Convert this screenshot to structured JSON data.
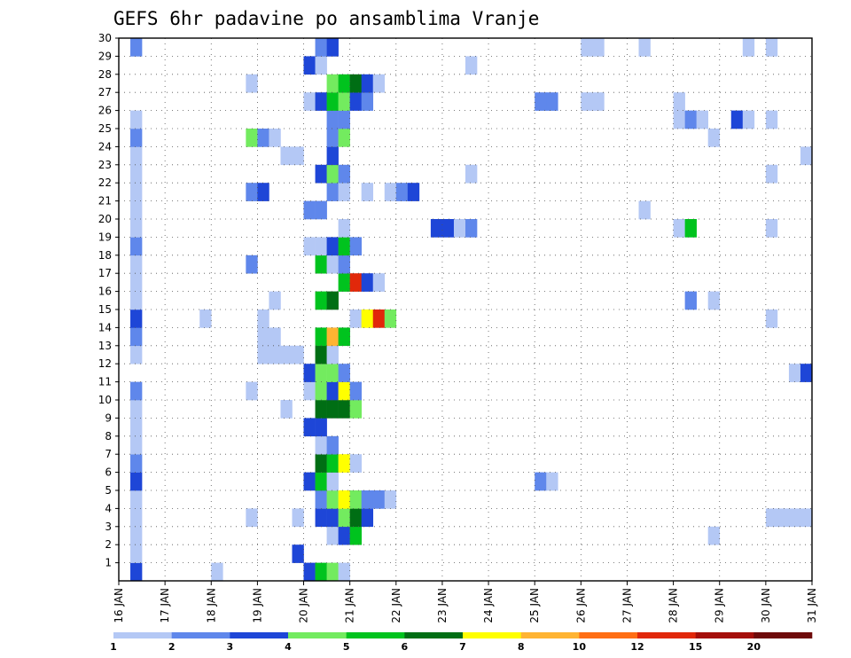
{
  "chart_data": {
    "type": "heatmap",
    "title": "GEFS 6hr padavine po ansamblima Vranje",
    "xlabel": "",
    "ylabel": "",
    "x_ticks": [
      "16 JAN",
      "17 JAN",
      "18 JAN",
      "19 JAN",
      "20 JAN",
      "21 JAN",
      "22 JAN",
      "23 JAN",
      "24 JAN",
      "25 JAN",
      "26 JAN",
      "27 JAN",
      "28 JAN",
      "29 JAN",
      "30 JAN",
      "31 JAN"
    ],
    "y_ticks": [
      "1",
      "2",
      "3",
      "4",
      "5",
      "6",
      "7",
      "8",
      "9",
      "10",
      "11",
      "12",
      "13",
      "14",
      "15",
      "16",
      "17",
      "18",
      "19",
      "20",
      "21",
      "22",
      "23",
      "24",
      "25",
      "26",
      "27",
      "28",
      "29",
      "30"
    ],
    "xlim": [
      "16 JAN",
      "31 JAN"
    ],
    "ylim": [
      0,
      30
    ],
    "grid": true,
    "legend": {
      "position": "bottom",
      "breaks": [
        "1",
        "2",
        "3",
        "4",
        "5",
        "6",
        "7",
        "8",
        "10",
        "12",
        "15",
        "20"
      ],
      "colors": [
        "#b4c8f5",
        "#5f87eb",
        "#1e46d7",
        "#73eb5f",
        "#00c31e",
        "#006e14",
        "#ffff00",
        "#ffb432",
        "#ff6e14",
        "#e1280a",
        "#a50f0a",
        "#6e0a0a"
      ]
    },
    "x_step": "6h",
    "cells": [
      [
        "16 JAN 06",
        0,
        3
      ],
      [
        "20 JAN 00",
        0,
        3
      ],
      [
        "20 JAN 06",
        0,
        5
      ],
      [
        "20 JAN 12",
        0,
        4
      ],
      [
        "20 JAN 18",
        0,
        1
      ],
      [
        "18 JAN 00",
        0,
        1
      ],
      [
        "16 JAN 06",
        1,
        1
      ],
      [
        "19 JAN 18",
        1,
        3
      ],
      [
        "16 JAN 06",
        2,
        1
      ],
      [
        "20 JAN 12",
        2,
        1
      ],
      [
        "20 JAN 18",
        2,
        3
      ],
      [
        "21 JAN 00",
        2,
        5
      ],
      [
        "28 JAN 18",
        2,
        1
      ],
      [
        "16 JAN 06",
        3,
        1
      ],
      [
        "18 JAN 18",
        3,
        1
      ],
      [
        "19 JAN 18",
        3,
        1
      ],
      [
        "20 JAN 06",
        3,
        3
      ],
      [
        "20 JAN 12",
        3,
        3
      ],
      [
        "20 JAN 18",
        3,
        4
      ],
      [
        "21 JAN 00",
        3,
        6
      ],
      [
        "21 JAN 06",
        3,
        3
      ],
      [
        "30 JAN 00",
        3,
        1
      ],
      [
        "30 JAN 06",
        3,
        1
      ],
      [
        "30 JAN 12",
        3,
        1
      ],
      [
        "30 JAN 18",
        3,
        1
      ],
      [
        "16 JAN 06",
        4,
        1
      ],
      [
        "20 JAN 06",
        4,
        2
      ],
      [
        "20 JAN 12",
        4,
        4
      ],
      [
        "20 JAN 18",
        4,
        7
      ],
      [
        "21 JAN 00",
        4,
        4
      ],
      [
        "21 JAN 06",
        4,
        2
      ],
      [
        "21 JAN 12",
        4,
        2
      ],
      [
        "21 JAN 18",
        4,
        1
      ],
      [
        "16 JAN 06",
        5,
        3
      ],
      [
        "20 JAN 00",
        5,
        3
      ],
      [
        "20 JAN 06",
        5,
        5
      ],
      [
        "20 JAN 12",
        5,
        1
      ],
      [
        "25 JAN 00",
        5,
        2
      ],
      [
        "25 JAN 06",
        5,
        1
      ],
      [
        "16 JAN 06",
        6,
        2
      ],
      [
        "20 JAN 06",
        6,
        6
      ],
      [
        "20 JAN 12",
        6,
        5
      ],
      [
        "20 JAN 18",
        6,
        7
      ],
      [
        "21 JAN 00",
        6,
        1
      ],
      [
        "16 JAN 06",
        7,
        1
      ],
      [
        "20 JAN 06",
        7,
        1
      ],
      [
        "20 JAN 12",
        7,
        2
      ],
      [
        "16 JAN 06",
        8,
        1
      ],
      [
        "20 JAN 00",
        8,
        3
      ],
      [
        "20 JAN 06",
        8,
        3
      ],
      [
        "16 JAN 06",
        9,
        1
      ],
      [
        "19 JAN 12",
        9,
        1
      ],
      [
        "20 JAN 06",
        9,
        6
      ],
      [
        "20 JAN 12",
        9,
        6
      ],
      [
        "20 JAN 18",
        9,
        6
      ],
      [
        "21 JAN 00",
        9,
        4
      ],
      [
        "16 JAN 06",
        10,
        2
      ],
      [
        "18 JAN 18",
        10,
        1
      ],
      [
        "20 JAN 00",
        10,
        1
      ],
      [
        "20 JAN 06",
        10,
        4
      ],
      [
        "20 JAN 12",
        10,
        3
      ],
      [
        "20 JAN 18",
        10,
        7
      ],
      [
        "21 JAN 00",
        10,
        2
      ],
      [
        "20 JAN 00",
        11,
        3
      ],
      [
        "20 JAN 06",
        11,
        4
      ],
      [
        "20 JAN 12",
        11,
        4
      ],
      [
        "20 JAN 18",
        11,
        2
      ],
      [
        "30 JAN 12",
        11,
        1
      ],
      [
        "30 JAN 18",
        11,
        3
      ],
      [
        "16 JAN 06",
        12,
        1
      ],
      [
        "19 JAN 00",
        12,
        1
      ],
      [
        "19 JAN 06",
        12,
        1
      ],
      [
        "19 JAN 12",
        12,
        1
      ],
      [
        "19 JAN 18",
        12,
        1
      ],
      [
        "20 JAN 06",
        12,
        6
      ],
      [
        "20 JAN 12",
        12,
        1
      ],
      [
        "16 JAN 06",
        13,
        2
      ],
      [
        "19 JAN 00",
        13,
        1
      ],
      [
        "19 JAN 06",
        13,
        1
      ],
      [
        "20 JAN 06",
        13,
        5
      ],
      [
        "20 JAN 12",
        13,
        8
      ],
      [
        "20 JAN 18",
        13,
        5
      ],
      [
        "16 JAN 06",
        14,
        3
      ],
      [
        "17 JAN 18",
        14,
        1
      ],
      [
        "19 JAN 00",
        14,
        1
      ],
      [
        "21 JAN 00",
        14,
        1
      ],
      [
        "21 JAN 06",
        14,
        7
      ],
      [
        "21 JAN 12",
        14,
        12
      ],
      [
        "21 JAN 18",
        14,
        4
      ],
      [
        "30 JAN 00",
        14,
        1
      ],
      [
        "16 JAN 06",
        15,
        1
      ],
      [
        "19 JAN 06",
        15,
        1
      ],
      [
        "20 JAN 06",
        15,
        5
      ],
      [
        "20 JAN 12",
        15,
        6
      ],
      [
        "28 JAN 06",
        15,
        2
      ],
      [
        "28 JAN 18",
        15,
        1
      ],
      [
        "16 JAN 06",
        16,
        1
      ],
      [
        "20 JAN 18",
        16,
        5
      ],
      [
        "21 JAN 00",
        16,
        12
      ],
      [
        "21 JAN 06",
        16,
        3
      ],
      [
        "21 JAN 12",
        16,
        1
      ],
      [
        "16 JAN 06",
        17,
        1
      ],
      [
        "18 JAN 18",
        17,
        2
      ],
      [
        "20 JAN 06",
        17,
        5
      ],
      [
        "20 JAN 12",
        17,
        1
      ],
      [
        "20 JAN 18",
        17,
        2
      ],
      [
        "16 JAN 06",
        18,
        2
      ],
      [
        "20 JAN 00",
        18,
        1
      ],
      [
        "20 JAN 06",
        18,
        1
      ],
      [
        "20 JAN 12",
        18,
        3
      ],
      [
        "20 JAN 18",
        18,
        5
      ],
      [
        "21 JAN 00",
        18,
        2
      ],
      [
        "16 JAN 06",
        19,
        1
      ],
      [
        "20 JAN 18",
        19,
        1
      ],
      [
        "22 JAN 18",
        19,
        3
      ],
      [
        "23 JAN 00",
        19,
        3
      ],
      [
        "23 JAN 06",
        19,
        1
      ],
      [
        "23 JAN 12",
        19,
        2
      ],
      [
        "28 JAN 00",
        19,
        1
      ],
      [
        "28 JAN 06",
        19,
        5
      ],
      [
        "30 JAN 00",
        19,
        1
      ],
      [
        "16 JAN 06",
        20,
        1
      ],
      [
        "20 JAN 00",
        20,
        2
      ],
      [
        "20 JAN 06",
        20,
        2
      ],
      [
        "27 JAN 06",
        20,
        1
      ],
      [
        "16 JAN 06",
        21,
        1
      ],
      [
        "18 JAN 18",
        21,
        2
      ],
      [
        "19 JAN 00",
        21,
        3
      ],
      [
        "20 JAN 12",
        21,
        2
      ],
      [
        "20 JAN 18",
        21,
        1
      ],
      [
        "21 JAN 06",
        21,
        1
      ],
      [
        "21 JAN 18",
        21,
        1
      ],
      [
        "22 JAN 00",
        21,
        2
      ],
      [
        "22 JAN 06",
        21,
        3
      ],
      [
        "16 JAN 06",
        22,
        1
      ],
      [
        "20 JAN 06",
        22,
        3
      ],
      [
        "20 JAN 12",
        22,
        4
      ],
      [
        "20 JAN 18",
        22,
        2
      ],
      [
        "23 JAN 12",
        22,
        1
      ],
      [
        "30 JAN 00",
        22,
        1
      ],
      [
        "16 JAN 06",
        23,
        1
      ],
      [
        "19 JAN 12",
        23,
        1
      ],
      [
        "19 JAN 18",
        23,
        1
      ],
      [
        "20 JAN 12",
        23,
        3
      ],
      [
        "30 JAN 18",
        23,
        1
      ],
      [
        "16 JAN 06",
        24,
        2
      ],
      [
        "18 JAN 18",
        24,
        4
      ],
      [
        "19 JAN 00",
        24,
        2
      ],
      [
        "19 JAN 06",
        24,
        1
      ],
      [
        "20 JAN 12",
        24,
        2
      ],
      [
        "20 JAN 18",
        24,
        4
      ],
      [
        "28 JAN 18",
        24,
        1
      ],
      [
        "16 JAN 06",
        25,
        1
      ],
      [
        "20 JAN 12",
        25,
        2
      ],
      [
        "20 JAN 18",
        25,
        2
      ],
      [
        "28 JAN 00",
        25,
        1
      ],
      [
        "28 JAN 06",
        25,
        2
      ],
      [
        "28 JAN 12",
        25,
        1
      ],
      [
        "29 JAN 06",
        25,
        3
      ],
      [
        "29 JAN 12",
        25,
        1
      ],
      [
        "30 JAN 00",
        25,
        1
      ],
      [
        "20 JAN 00",
        26,
        1
      ],
      [
        "20 JAN 06",
        26,
        3
      ],
      [
        "20 JAN 12",
        26,
        5
      ],
      [
        "20 JAN 18",
        26,
        4
      ],
      [
        "21 JAN 00",
        26,
        3
      ],
      [
        "21 JAN 06",
        26,
        2
      ],
      [
        "25 JAN 00",
        26,
        2
      ],
      [
        "25 JAN 06",
        26,
        2
      ],
      [
        "26 JAN 00",
        26,
        1
      ],
      [
        "26 JAN 06",
        26,
        1
      ],
      [
        "28 JAN 00",
        26,
        1
      ],
      [
        "20 JAN 12",
        27,
        4
      ],
      [
        "20 JAN 18",
        27,
        5
      ],
      [
        "21 JAN 00",
        27,
        6
      ],
      [
        "21 JAN 06",
        27,
        3
      ],
      [
        "21 JAN 12",
        27,
        1
      ],
      [
        "18 JAN 18",
        27,
        1
      ],
      [
        "20 JAN 00",
        28,
        3
      ],
      [
        "20 JAN 06",
        28,
        1
      ],
      [
        "23 JAN 12",
        28,
        1
      ],
      [
        "16 JAN 06",
        29,
        2
      ],
      [
        "20 JAN 06",
        29,
        2
      ],
      [
        "20 JAN 12",
        29,
        3
      ],
      [
        "26 JAN 00",
        29,
        1
      ],
      [
        "26 JAN 06",
        29,
        1
      ],
      [
        "27 JAN 06",
        29,
        1
      ],
      [
        "29 JAN 12",
        29,
        1
      ],
      [
        "30 JAN 00",
        29,
        1
      ]
    ]
  }
}
